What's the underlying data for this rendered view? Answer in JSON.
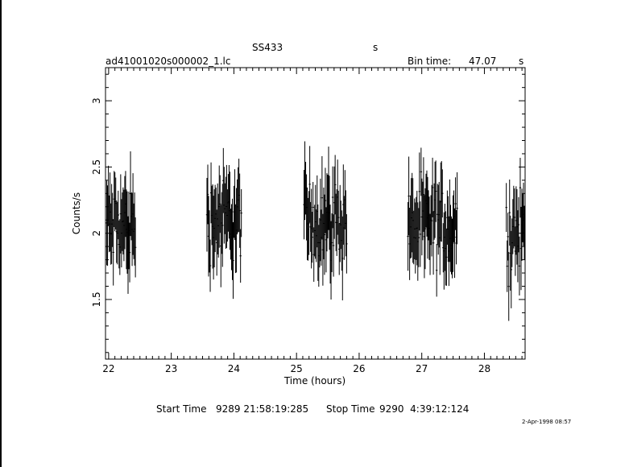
{
  "header": {
    "object": "SS433",
    "object_unit": "s",
    "filename": "ad41001020s000002_1.lc",
    "bin_time_label": "Bin time:",
    "bin_time_value": "47.07",
    "bin_time_unit": "s"
  },
  "footer": {
    "start_label": "Start Time",
    "start_value": "9289 21:58:19:285",
    "stop_label": "Stop Time",
    "stop_value": "9290  4:39:12:124",
    "timestamp": "2-Apr-1998 08:57"
  },
  "chart_data": {
    "type": "scatter",
    "title": "",
    "xlabel": "Time (hours)",
    "ylabel": "Counts/s",
    "xlim": [
      21.95,
      28.65
    ],
    "ylim": [
      1.05,
      3.25
    ],
    "x_ticks": [
      22,
      23,
      24,
      25,
      26,
      27,
      28
    ],
    "y_ticks": [
      1.5,
      2,
      2.5,
      3
    ],
    "x_tick_labels": [
      "22",
      "23",
      "24",
      "25",
      "26",
      "27",
      "28"
    ],
    "y_tick_labels": [
      "1.5",
      "2",
      "2.5",
      "3"
    ],
    "grid": false,
    "error_bars": true,
    "segments": [
      {
        "start": 21.97,
        "end": 22.43,
        "mean": 2.05
      },
      {
        "start": 23.57,
        "end": 24.13,
        "mean": 2.1
      },
      {
        "start": 25.12,
        "end": 25.8,
        "mean": 2.1
      },
      {
        "start": 26.78,
        "end": 27.57,
        "mean": 2.05
      },
      {
        "start": 28.35,
        "end": 28.65,
        "mean": 2.0
      }
    ]
  }
}
